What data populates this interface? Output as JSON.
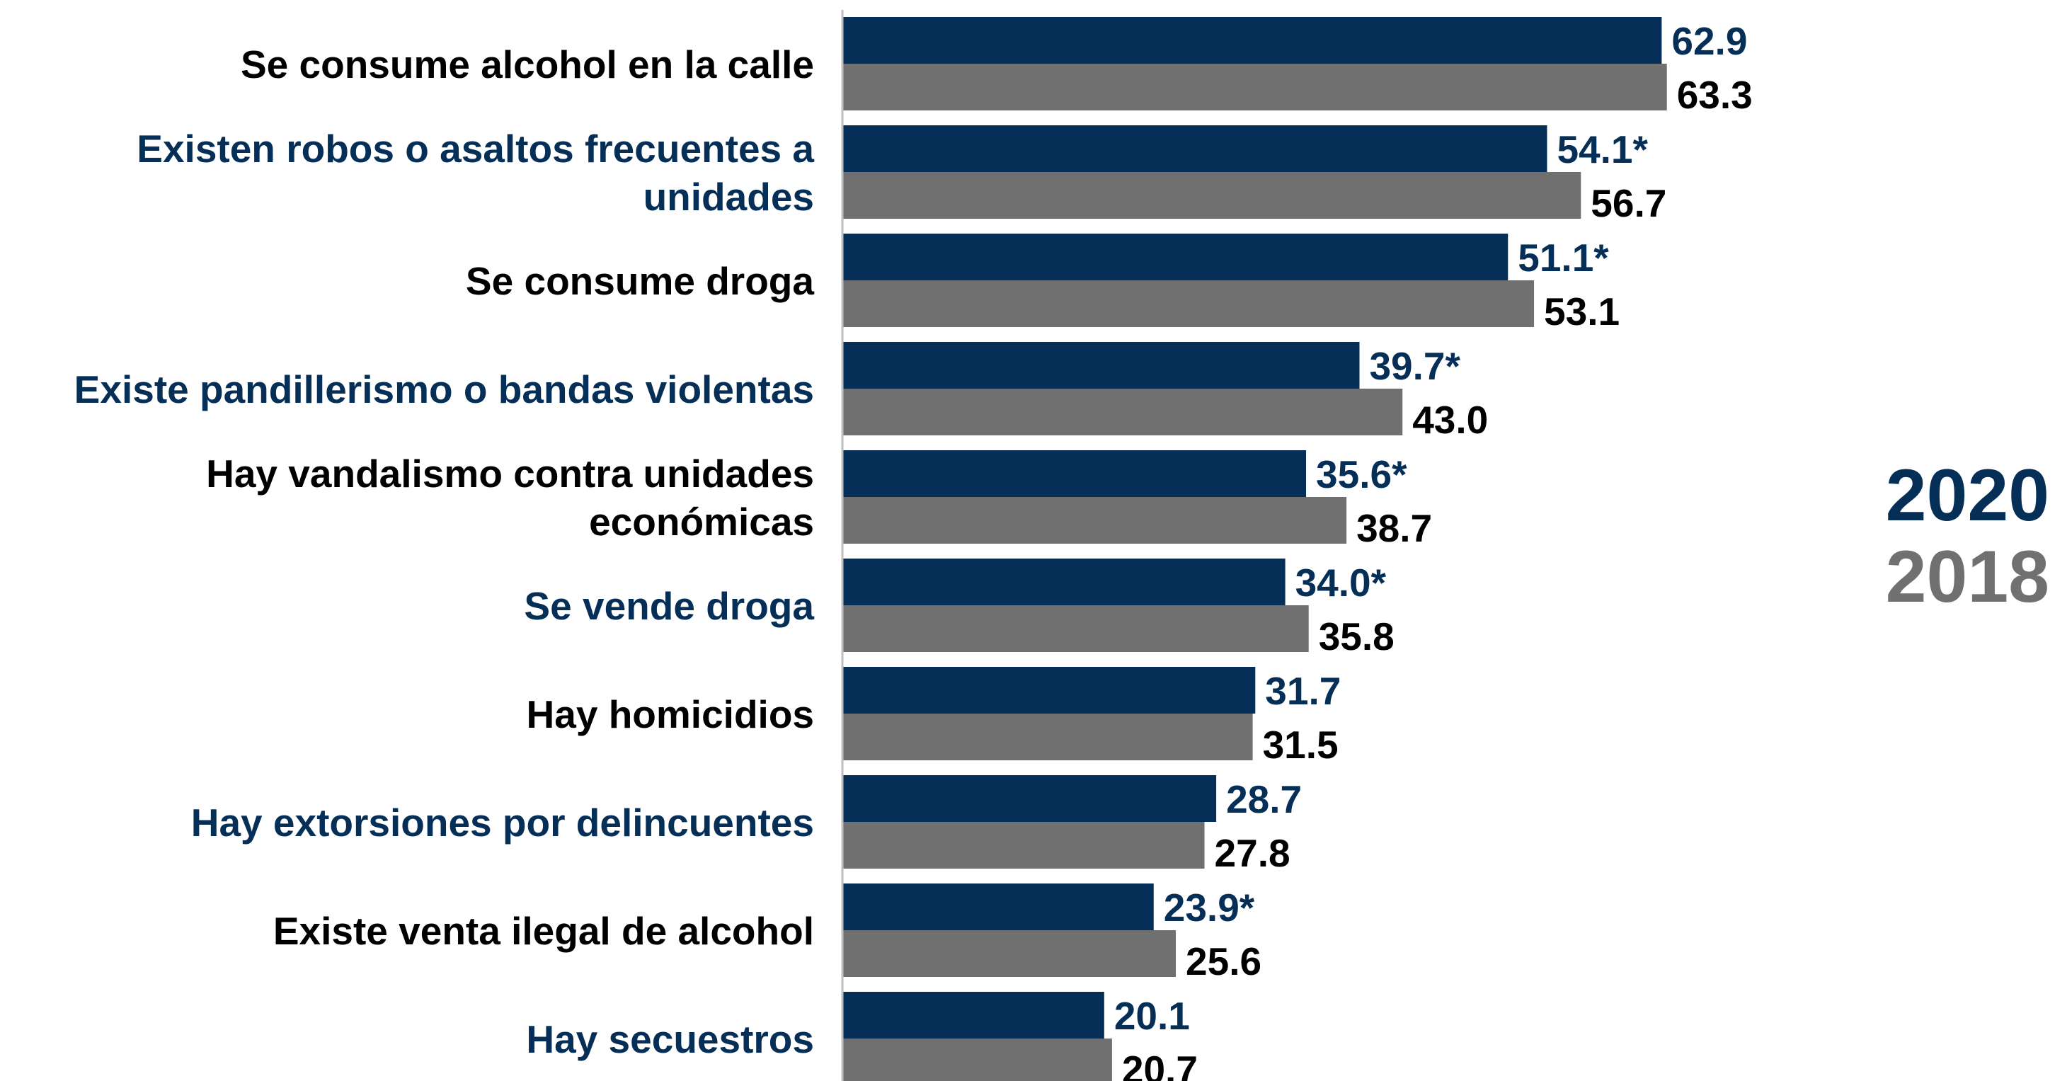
{
  "chart_data": {
    "type": "bar",
    "orientation": "horizontal",
    "categories": [
      [
        "Se consume alcohol en la calle"
      ],
      [
        "Existen robos o asaltos frecuentes a",
        "unidades"
      ],
      [
        "Se consume droga"
      ],
      [
        "Existe pandillerismo o bandas violentas"
      ],
      [
        "Hay vandalismo contra unidades",
        "económicas"
      ],
      [
        "Se vende droga"
      ],
      [
        "Hay homicidios"
      ],
      [
        "Hay extorsiones por delincuentes"
      ],
      [
        "Existe venta ilegal de alcohol"
      ],
      [
        "Hay secuestros"
      ]
    ],
    "series": [
      {
        "name": "2020",
        "color": "#062F57",
        "values": [
          62.9,
          54.1,
          51.1,
          39.7,
          35.6,
          34.0,
          31.7,
          28.7,
          23.9,
          20.1
        ],
        "labels": [
          "62.9",
          "54.1*",
          "51.1*",
          "39.7*",
          "35.6*",
          "34.0*",
          "31.7",
          "28.7",
          "23.9*",
          "20.1"
        ]
      },
      {
        "name": "2018",
        "color": "#707070",
        "values": [
          63.3,
          56.7,
          53.1,
          43.0,
          38.7,
          35.8,
          31.5,
          27.8,
          25.6,
          20.7
        ],
        "labels": [
          "63.3",
          "56.7",
          "53.1",
          "43.0",
          "38.7",
          "35.8",
          "31.5",
          "27.8",
          "25.6",
          "20.7"
        ]
      }
    ],
    "category_label_colors": [
      "#000000",
      "#062F57"
    ],
    "value_label_colors": [
      "#062F57",
      "#000000"
    ],
    "xlim": [
      0,
      100
    ],
    "grid": false,
    "legend": "right"
  }
}
